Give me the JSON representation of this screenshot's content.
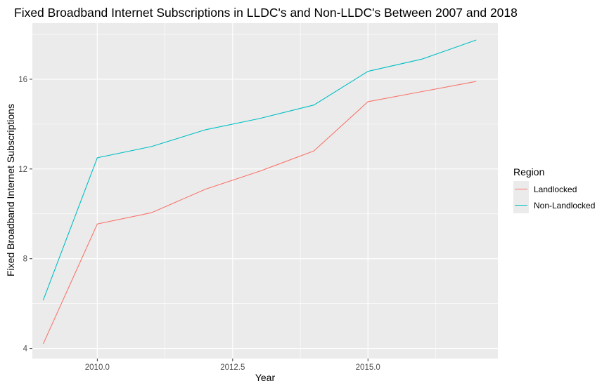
{
  "chart_data": {
    "type": "line",
    "title": "Fixed Broadband Internet Subscriptions in LLDC's and Non-LLDC's Between 2007 and 2018",
    "xlabel": "Year",
    "ylabel": "Fixed Broadband Internet Subscriptions",
    "x": [
      2009,
      2010,
      2011,
      2012,
      2013,
      2014,
      2015,
      2016,
      2017
    ],
    "xlim": [
      2008.8,
      2017.4
    ],
    "ylim": [
      3.55,
      18.5
    ],
    "x_ticks": [
      2010,
      2012.5,
      2015
    ],
    "x_tick_labels": [
      "2010.0",
      "2012.5",
      "2015.0"
    ],
    "y_ticks": [
      4,
      8,
      12,
      16
    ],
    "y_tick_labels": [
      "4",
      "8",
      "12",
      "16"
    ],
    "grid": true,
    "legend_placement": "right",
    "legend_title": "Region",
    "series": [
      {
        "name": "Landlocked",
        "color": "#F8766D",
        "values": [
          4.2,
          9.55,
          10.05,
          11.1,
          11.9,
          12.8,
          15.0,
          15.45,
          15.9
        ]
      },
      {
        "name": "Non-Landlocked",
        "color": "#00BFC4",
        "values": [
          6.15,
          12.5,
          13.0,
          13.75,
          14.25,
          14.85,
          16.35,
          16.9,
          17.75
        ]
      }
    ]
  }
}
